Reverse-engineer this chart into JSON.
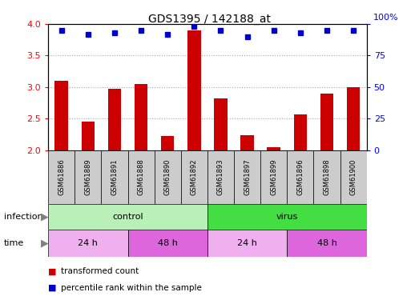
{
  "title": "GDS1395 / 142188_at",
  "samples": [
    "GSM61886",
    "GSM61889",
    "GSM61891",
    "GSM61888",
    "GSM61890",
    "GSM61892",
    "GSM61893",
    "GSM61897",
    "GSM61899",
    "GSM61896",
    "GSM61898",
    "GSM61900"
  ],
  "transformed_count": [
    3.1,
    2.45,
    2.97,
    3.05,
    2.22,
    3.9,
    2.82,
    2.23,
    2.05,
    2.57,
    2.9,
    3.0
  ],
  "percentile_rank": [
    95,
    92,
    93,
    95,
    92,
    98,
    95,
    90,
    95,
    93,
    95,
    95
  ],
  "ylim_left": [
    2.0,
    4.0
  ],
  "ylim_right": [
    0,
    100
  ],
  "yticks_left": [
    2.0,
    2.5,
    3.0,
    3.5,
    4.0
  ],
  "yticks_right": [
    0,
    25,
    50,
    75,
    100
  ],
  "bar_color": "#cc0000",
  "dot_color": "#0000cc",
  "grid_color": "#aaaaaa",
  "infection_control_color": "#b8f0b8",
  "infection_virus_color": "#44dd44",
  "time_24h_color": "#f0b0f0",
  "time_48h_color": "#dd66dd",
  "bg_color": "#ffffff",
  "sample_bg_color": "#cccccc",
  "infection_groups": [
    {
      "label": "control",
      "start": 0,
      "end": 6
    },
    {
      "label": "virus",
      "start": 6,
      "end": 12
    }
  ],
  "time_groups": [
    {
      "label": "24 h",
      "start": 0,
      "end": 3,
      "color": "#f0b0f0"
    },
    {
      "label": "48 h",
      "start": 3,
      "end": 6,
      "color": "#dd66dd"
    },
    {
      "label": "24 h",
      "start": 6,
      "end": 9,
      "color": "#f0b0f0"
    },
    {
      "label": "48 h",
      "start": 9,
      "end": 12,
      "color": "#dd66dd"
    }
  ],
  "legend_items": [
    {
      "label": "transformed count",
      "color": "#cc0000"
    },
    {
      "label": "percentile rank within the sample",
      "color": "#0000cc"
    }
  ]
}
